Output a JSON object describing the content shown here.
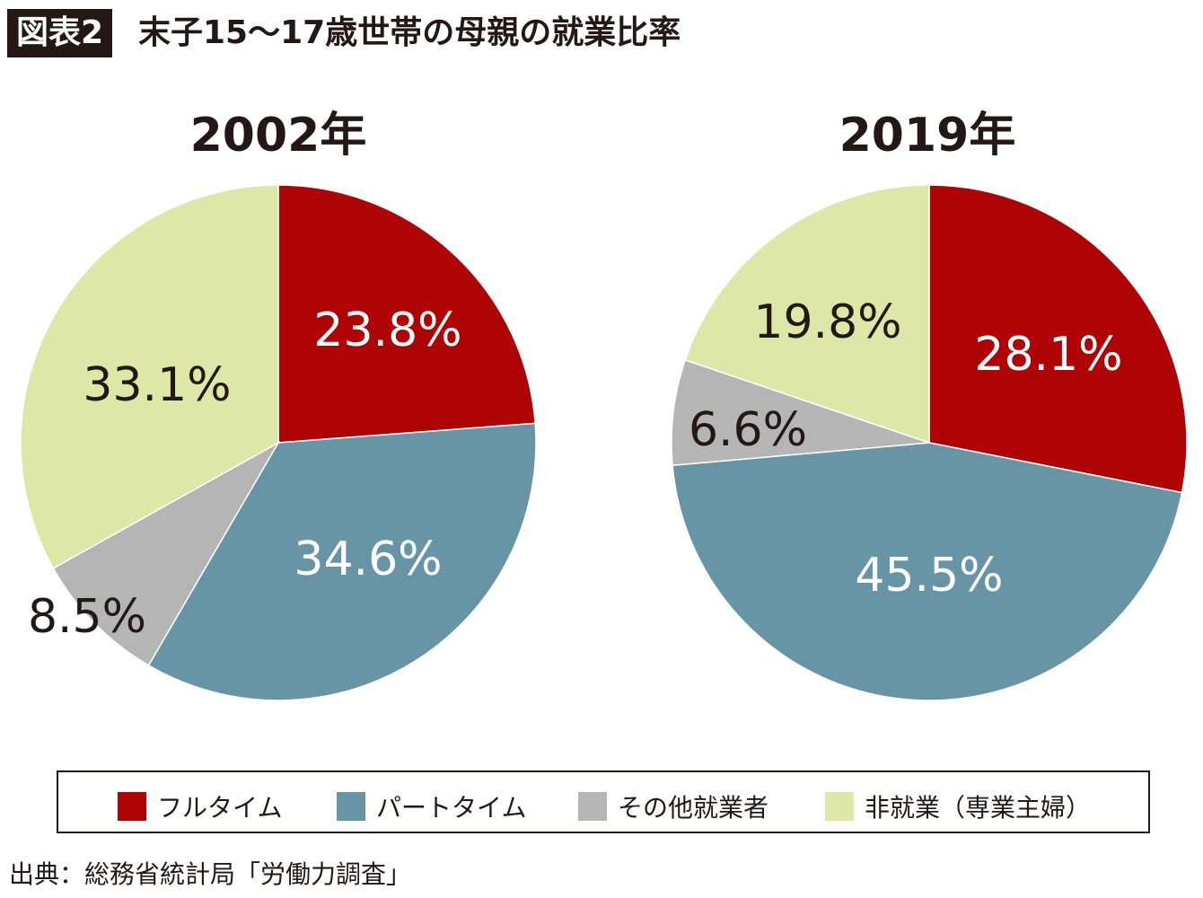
{
  "title": {
    "badge": "図表2",
    "text": "末子15〜17歳世帯の母親の就業比率"
  },
  "source": "出典：総務省統計局「労働力調査」",
  "legend": [
    {
      "label": "フルタイム",
      "color": "#AE0406"
    },
    {
      "label": "パートタイム",
      "color": "#6795A6"
    },
    {
      "label": "その他就業者",
      "color": "#B5B5B5"
    },
    {
      "label": "非就業（専業主婦）",
      "color": "#DDE8A8"
    }
  ],
  "chart_data": [
    {
      "type": "pie",
      "title": "2002年",
      "categories": [
        "フルタイム",
        "パートタイム",
        "その他就業者",
        "非就業（専業主婦）"
      ],
      "values": [
        23.8,
        34.6,
        8.5,
        33.1
      ],
      "labels": [
        "23.8%",
        "34.6%",
        "8.5%",
        "33.1%"
      ]
    },
    {
      "type": "pie",
      "title": "2019年",
      "categories": [
        "フルタイム",
        "パートタイム",
        "その他就業者",
        "非就業（専業主婦）"
      ],
      "values": [
        28.1,
        45.5,
        6.6,
        19.8
      ],
      "labels": [
        "28.1%",
        "45.5%",
        "6.6%",
        "19.8%"
      ]
    }
  ]
}
